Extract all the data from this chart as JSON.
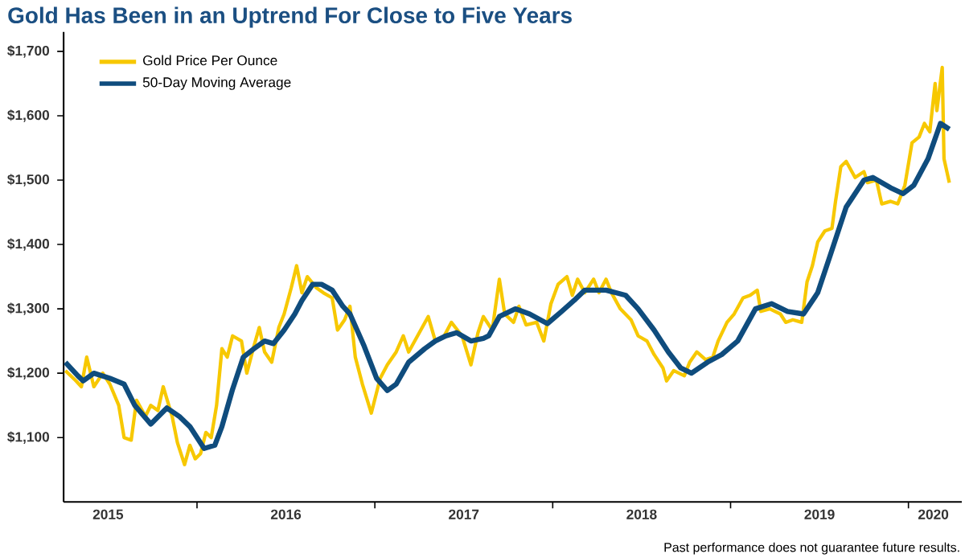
{
  "chart_data": {
    "type": "line",
    "title": "Gold Has Been in an Uptrend For Close to Five Years",
    "annotations": [
      "Past performance does not guarantee future results."
    ],
    "xlim": [
      2015.25,
      2020.3
    ],
    "xticks": [
      {
        "value": 2016,
        "label": null
      },
      {
        "value": 2017,
        "label": null
      },
      {
        "value": 2018,
        "label": null
      },
      {
        "value": 2019,
        "label": null
      },
      {
        "value": 2020,
        "label": null
      },
      {
        "value": 2015.5,
        "label": "2015"
      },
      {
        "value": 2016.5,
        "label": "2016"
      },
      {
        "value": 2017.5,
        "label": "2017"
      },
      {
        "value": 2018.5,
        "label": "2018"
      },
      {
        "value": 2019.5,
        "label": "2019"
      },
      {
        "value": 2020.14,
        "label": "2020"
      }
    ],
    "ylim": [
      1000,
      1730
    ],
    "yticks": [
      {
        "value": 1100,
        "label": "$1,100"
      },
      {
        "value": 1200,
        "label": "$1,200"
      },
      {
        "value": 1300,
        "label": "$1,300"
      },
      {
        "value": 1400,
        "label": "$1,400"
      },
      {
        "value": 1500,
        "label": "$1,500"
      },
      {
        "value": 1600,
        "label": "$1,600"
      },
      {
        "value": 1700,
        "label": "$1,700"
      }
    ],
    "grid": false,
    "legend": "top left",
    "marker": "none",
    "line_style": "solid",
    "series": [
      {
        "name": "Gold Price Per Ounce",
        "color": "#f7c800",
        "x": [
          2015.26,
          2015.32,
          2015.35,
          2015.38,
          2015.42,
          2015.47,
          2015.51,
          2015.56,
          2015.59,
          2015.63,
          2015.66,
          2015.71,
          2015.74,
          2015.78,
          2015.81,
          2015.86,
          2015.89,
          2015.93,
          2015.96,
          2015.99,
          2016.02,
          2016.05,
          2016.08,
          2016.11,
          2016.14,
          2016.17,
          2016.2,
          2016.25,
          2016.28,
          2016.32,
          2016.35,
          2016.38,
          2016.42,
          2016.46,
          2016.49,
          2016.53,
          2016.56,
          2016.59,
          2016.62,
          2016.67,
          2016.71,
          2016.76,
          2016.79,
          2016.83,
          2016.86,
          2016.89,
          2016.93,
          2016.98,
          2017.03,
          2017.07,
          2017.12,
          2017.16,
          2017.19,
          2017.25,
          2017.3,
          2017.34,
          2017.39,
          2017.43,
          2017.49,
          2017.54,
          2017.58,
          2017.61,
          2017.66,
          2017.7,
          2017.73,
          2017.78,
          2017.81,
          2017.85,
          2017.91,
          2017.95,
          2017.99,
          2018.03,
          2018.08,
          2018.11,
          2018.14,
          2018.18,
          2018.23,
          2018.26,
          2018.3,
          2018.33,
          2018.38,
          2018.44,
          2018.48,
          2018.53,
          2018.57,
          2018.62,
          2018.64,
          2018.68,
          2018.74,
          2018.77,
          2018.81,
          2018.86,
          2018.9,
          2018.93,
          2018.98,
          2019.02,
          2019.07,
          2019.11,
          2019.15,
          2019.17,
          2019.22,
          2019.28,
          2019.31,
          2019.35,
          2019.4,
          2019.43,
          2019.46,
          2019.49,
          2019.53,
          2019.57,
          2019.59,
          2019.62,
          2019.65,
          2019.7,
          2019.75,
          2019.77,
          2019.82,
          2019.85,
          2019.9,
          2019.94,
          2019.98,
          2020.02,
          2020.06,
          2020.09,
          2020.12,
          2020.15,
          2020.16,
          2020.19,
          2020.2,
          2020.23
        ],
        "values": [
          1204,
          1188,
          1179,
          1225,
          1179,
          1200,
          1183,
          1150,
          1100,
          1096,
          1158,
          1133,
          1150,
          1142,
          1179,
          1133,
          1092,
          1058,
          1088,
          1067,
          1075,
          1108,
          1100,
          1150,
          1238,
          1225,
          1258,
          1250,
          1200,
          1242,
          1271,
          1233,
          1217,
          1271,
          1292,
          1333,
          1367,
          1325,
          1350,
          1333,
          1325,
          1317,
          1267,
          1283,
          1304,
          1225,
          1183,
          1138,
          1192,
          1213,
          1233,
          1258,
          1233,
          1263,
          1288,
          1250,
          1258,
          1279,
          1258,
          1213,
          1263,
          1288,
          1267,
          1346,
          1292,
          1279,
          1304,
          1275,
          1279,
          1250,
          1308,
          1338,
          1350,
          1321,
          1346,
          1325,
          1346,
          1325,
          1346,
          1325,
          1300,
          1283,
          1258,
          1250,
          1229,
          1208,
          1188,
          1204,
          1196,
          1217,
          1233,
          1221,
          1225,
          1250,
          1279,
          1292,
          1317,
          1321,
          1329,
          1296,
          1300,
          1292,
          1279,
          1283,
          1279,
          1342,
          1367,
          1404,
          1421,
          1425,
          1467,
          1521,
          1529,
          1504,
          1513,
          1496,
          1500,
          1463,
          1467,
          1463,
          1492,
          1558,
          1567,
          1588,
          1575,
          1650,
          1608,
          1675,
          1533,
          1496
        ]
      },
      {
        "name": "50-Day Moving Average",
        "color": "#0f4c7d",
        "x": [
          2015.26,
          2015.33,
          2015.36,
          2015.42,
          2015.51,
          2015.59,
          2015.65,
          2015.74,
          2015.83,
          2015.9,
          2015.96,
          2016.04,
          2016.1,
          2016.14,
          2016.2,
          2016.26,
          2016.32,
          2016.38,
          2016.43,
          2016.49,
          2016.55,
          2016.59,
          2016.65,
          2016.7,
          2016.76,
          2016.82,
          2016.86,
          2016.94,
          2017.01,
          2017.07,
          2017.12,
          2017.19,
          2017.28,
          2017.34,
          2017.4,
          2017.46,
          2017.54,
          2017.61,
          2017.64,
          2017.7,
          2017.79,
          2017.87,
          2017.97,
          2018.05,
          2018.12,
          2018.18,
          2018.3,
          2018.41,
          2018.48,
          2018.57,
          2018.65,
          2018.72,
          2018.78,
          2018.87,
          2018.95,
          2019.04,
          2019.14,
          2019.23,
          2019.32,
          2019.41,
          2019.49,
          2019.56,
          2019.65,
          2019.75,
          2019.8,
          2019.9,
          2019.97,
          2020.03,
          2020.11,
          2020.18,
          2020.23
        ],
        "values": [
          1217,
          1196,
          1188,
          1200,
          1192,
          1183,
          1150,
          1121,
          1146,
          1133,
          1117,
          1083,
          1088,
          1117,
          1175,
          1225,
          1238,
          1250,
          1246,
          1267,
          1292,
          1313,
          1338,
          1338,
          1329,
          1304,
          1292,
          1242,
          1192,
          1173,
          1183,
          1217,
          1238,
          1250,
          1258,
          1263,
          1250,
          1254,
          1258,
          1288,
          1300,
          1292,
          1277,
          1296,
          1313,
          1329,
          1329,
          1321,
          1300,
          1267,
          1233,
          1208,
          1200,
          1217,
          1229,
          1250,
          1300,
          1308,
          1296,
          1292,
          1325,
          1383,
          1458,
          1500,
          1504,
          1488,
          1479,
          1492,
          1533,
          1588,
          1579
        ]
      }
    ]
  }
}
